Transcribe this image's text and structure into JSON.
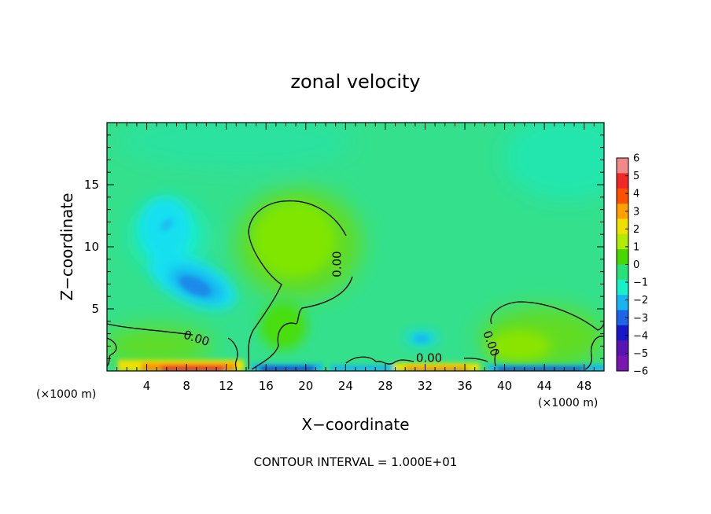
{
  "chart_data": {
    "type": "heatmap",
    "title": "zonal velocity",
    "xlabel": "X−coordinate",
    "ylabel": "Z−coordinate",
    "x_unit_left": "(×1000 m)",
    "x_unit_right": "(×1000 m)",
    "xlim": [
      0,
      50
    ],
    "ylim": [
      0,
      20
    ],
    "x_ticks": [
      4,
      8,
      12,
      16,
      20,
      24,
      28,
      32,
      36,
      40,
      44,
      48
    ],
    "x_tick_labels": [
      "4",
      "8",
      "12",
      "16",
      "20",
      "24",
      "28",
      "32",
      "36",
      "40",
      "44",
      "48"
    ],
    "y_ticks": [
      5,
      10,
      15
    ],
    "y_tick_labels": [
      "5",
      "10",
      "15"
    ],
    "colorbar": {
      "levels": [
        6,
        5,
        4,
        3,
        2,
        1,
        0,
        -1,
        -2,
        -3,
        -4,
        -5,
        -6
      ],
      "labels": [
        "6",
        "5",
        "4",
        "3",
        "2",
        "1",
        "0",
        "−1",
        "−2",
        "−3",
        "−4",
        "−5",
        "−6"
      ],
      "colors": [
        "#f08a8a",
        "#f02828",
        "#ff5000",
        "#ffa000",
        "#f0e000",
        "#b4ea00",
        "#46d800",
        "#28e078",
        "#18f0c8",
        "#18b4f0",
        "#1e64e8",
        "#1818c8",
        "#5a14b4",
        "#7a16b0"
      ]
    },
    "contour_labels": [
      {
        "text": "0.00",
        "x": 9,
        "z": 2.6
      },
      {
        "text": "0.00",
        "x": 23.2,
        "z": 8.6
      },
      {
        "text": "0.00",
        "x": 32.4,
        "z": 1.0
      },
      {
        "text": "0.00",
        "x": 38.6,
        "z": 2.2
      }
    ],
    "features": [
      {
        "kind": "min",
        "x": 9.2,
        "z": 7.0,
        "value": -2.8
      },
      {
        "kind": "min",
        "x": 6.0,
        "z": 11.6,
        "value": -1.8
      },
      {
        "kind": "min",
        "x": 31.0,
        "z": 2.7,
        "value": -2.0
      },
      {
        "kind": "max",
        "x": 18.8,
        "z": 10.6,
        "value": 0.7
      },
      {
        "kind": "max",
        "x": 8.4,
        "z": 0.3,
        "value": 5.0
      },
      {
        "kind": "min",
        "x": 18.0,
        "z": 0.2,
        "value": -4.0
      },
      {
        "kind": "min",
        "x": 40.6,
        "z": 0.2,
        "value": -4.0
      }
    ],
    "footer": "CONTOUR INTERVAL = 1.000E+01"
  }
}
